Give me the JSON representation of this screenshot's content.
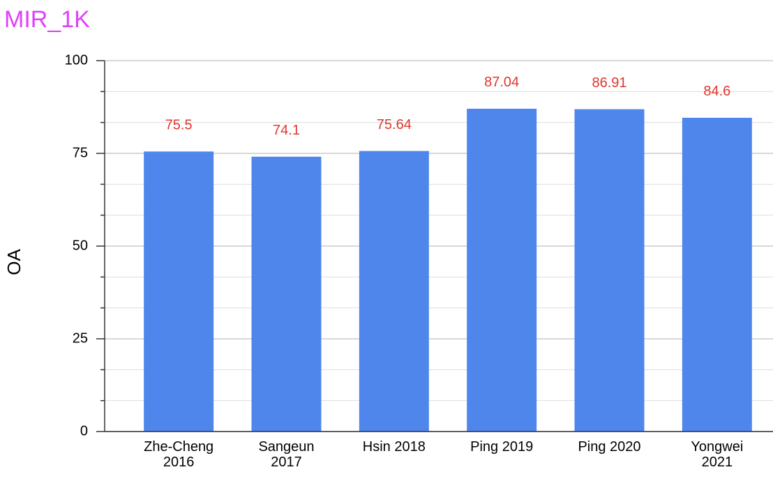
{
  "chart_data": {
    "type": "bar",
    "title": "MIR_1K",
    "y_label": "OA",
    "categories": [
      "Zhe-Cheng 2016",
      "Sangeun 2017",
      "Hsin 2018",
      "Ping 2019",
      "Ping 2020",
      "Yongwei 2021"
    ],
    "values": [
      75.5,
      74.1,
      75.64,
      87.04,
      86.91,
      84.6
    ],
    "color": "#4f86ec",
    "label_color": "#e0362c",
    "title_color": "#e040fb",
    "ylim": [
      0,
      100
    ],
    "yticks": [
      0,
      25,
      50,
      75,
      100
    ],
    "grid": true
  }
}
